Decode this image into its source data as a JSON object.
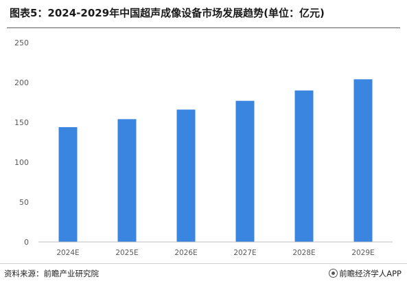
{
  "title": "图表5：2024-2029年中国超声成像设备市场发展趋势(单位：亿元)",
  "source": "资料来源：前瞻产业研究院",
  "credit": "前瞻经济学人APP",
  "colors": {
    "bar": "#3a85e0",
    "axis": "#bfbfbf",
    "text": "#595959"
  },
  "chart_data": {
    "type": "bar",
    "title": "图表5：2024-2029年中国超声成像设备市场发展趋势(单位：亿元)",
    "categories": [
      "2024E",
      "2025E",
      "2026E",
      "2027E",
      "2028E",
      "2029E"
    ],
    "values": [
      144,
      154,
      166,
      177,
      190,
      204
    ],
    "xlabel": "",
    "ylabel": "",
    "ylim": [
      0,
      250
    ],
    "yticks": [
      0,
      50,
      100,
      150,
      200,
      250
    ],
    "grid": false,
    "legend": "none"
  }
}
